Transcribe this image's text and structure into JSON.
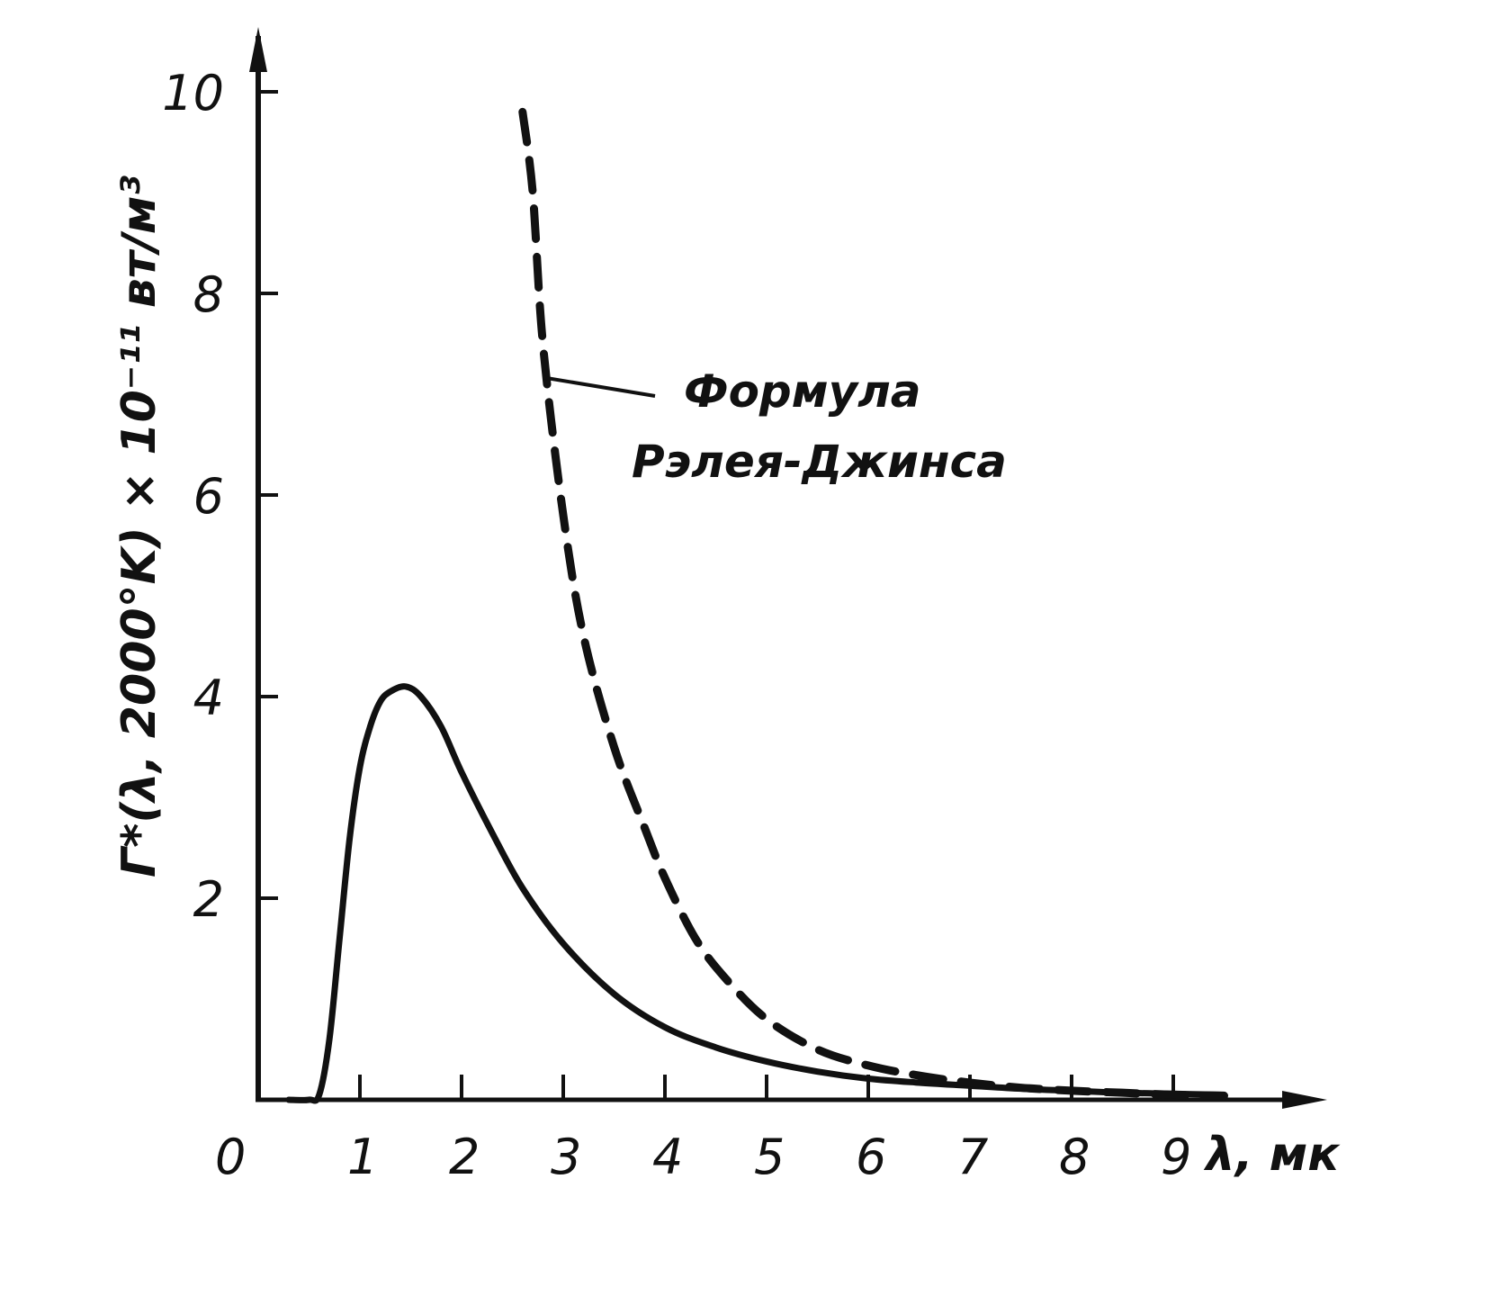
{
  "chart_data": {
    "type": "line",
    "xlabel": "λ, мк",
    "ylabel": "Γ*(λ, 2000°K) × 10⁻¹¹ вт/м³",
    "xlim": [
      0,
      10.5
    ],
    "ylim": [
      0,
      10
    ],
    "x_ticks": [
      0,
      1,
      2,
      3,
      4,
      5,
      6,
      7,
      8,
      9
    ],
    "y_ticks": [
      2,
      4,
      6,
      8,
      10
    ],
    "x_tick_labels": [
      "0",
      "1",
      "2",
      "3",
      "4",
      "5",
      "6",
      "7",
      "8",
      "9"
    ],
    "y_tick_labels": [
      "2",
      "4",
      "6",
      "8",
      "10"
    ],
    "grid": false,
    "legend": "none",
    "series": [
      {
        "style": "solid",
        "color": "#111111",
        "x": [
          0.3,
          0.5,
          0.6,
          0.7,
          0.8,
          0.9,
          1.0,
          1.1,
          1.2,
          1.3,
          1.45,
          1.6,
          1.8,
          2.0,
          2.3,
          2.6,
          3.0,
          3.5,
          4.0,
          4.5,
          5.0,
          5.5,
          6.0,
          6.5,
          7.0,
          7.5,
          8.0,
          8.5,
          9.0,
          9.5
        ],
        "y": [
          0.0,
          0.0,
          0.05,
          0.6,
          1.6,
          2.6,
          3.3,
          3.7,
          3.95,
          4.05,
          4.1,
          4.0,
          3.7,
          3.25,
          2.65,
          2.1,
          1.55,
          1.05,
          0.72,
          0.52,
          0.38,
          0.28,
          0.21,
          0.17,
          0.14,
          0.11,
          0.09,
          0.07,
          0.06,
          0.05
        ]
      },
      {
        "style": "dashed",
        "color": "#111111",
        "x": [
          2.6,
          2.7,
          2.8,
          3.0,
          3.2,
          3.5,
          3.8,
          4.0,
          4.3,
          4.6,
          5.0,
          5.5,
          6.0,
          6.5,
          7.0,
          7.5,
          8.0,
          8.5,
          9.0,
          9.5
        ],
        "y": [
          9.8,
          9.0,
          7.5,
          5.8,
          4.6,
          3.5,
          2.7,
          2.2,
          1.6,
          1.2,
          0.8,
          0.5,
          0.34,
          0.24,
          0.17,
          0.12,
          0.09,
          0.07,
          0.05,
          0.04
        ]
      }
    ],
    "annotations": [
      {
        "text_lines": [
          "Формула",
          "Рэлея-Джинса"
        ],
        "points_to_series": 1,
        "at_x": 2.85
      }
    ]
  }
}
